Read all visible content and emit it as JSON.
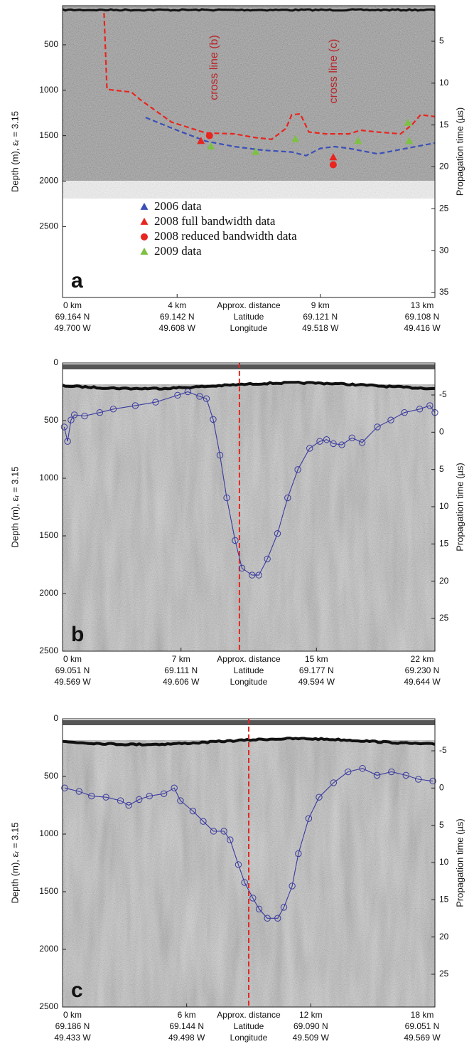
{
  "chart_data": [
    {
      "type": "line",
      "panel_label": "a",
      "y_label": "Depth (m), εᵣ = 3.15",
      "y2_label": "Propagation  time (µs)",
      "xlim": [
        0,
        13
      ],
      "xticks": [
        {
          "value": 0,
          "label": "0 km"
        },
        {
          "value": 4,
          "label": "4 km"
        },
        {
          "value": 9,
          "label": "9 km"
        },
        {
          "value": 13,
          "label": "13 km"
        }
      ],
      "latitudes": [
        "69.164 N",
        "69.142 N",
        "69.121 N",
        "69.108 N"
      ],
      "longitudes": [
        "49.700 W",
        "49.608 W",
        "49.518 W",
        "49.416 W"
      ],
      "row_labels": [
        "Approx. distance",
        "Latitude",
        "Longitude"
      ],
      "ylim": [
        3280,
        70
      ],
      "yticks": [
        500,
        1000,
        1500,
        2000,
        2500
      ],
      "y2lim": [
        35.6,
        0.75
      ],
      "y2ticks": [
        5,
        10,
        15,
        20,
        25,
        30,
        35
      ],
      "annotations": [
        "cross line (b)",
        "cross line (c)"
      ],
      "series": [
        {
          "name": "2006 data",
          "color": "#3b4fb8",
          "line": "dashed",
          "legend_marker": "triangle",
          "x": [
            2.9,
            4,
            5,
            6,
            7,
            8,
            8.5,
            9,
            9.5,
            10,
            11,
            12,
            13
          ],
          "values": [
            1300,
            1440,
            1560,
            1620,
            1660,
            1680,
            1720,
            1640,
            1620,
            1640,
            1700,
            1640,
            1580
          ]
        },
        {
          "name": "2008 full bandwidth data",
          "color": "#e8251f",
          "marker": "triangle",
          "x": [
            4.83,
            9.45
          ],
          "values": [
            1560,
            1740
          ]
        },
        {
          "name": "2008 reduced bandwidth data",
          "color": "#e8251f",
          "marker": "circle",
          "x": [
            5.13,
            9.45
          ],
          "values": [
            1500,
            1820
          ]
        },
        {
          "name": "2009 data",
          "color": "#7dc142",
          "marker": "triangle",
          "x": [
            5.18,
            6.74,
            8.13,
            10.32,
            12.06,
            12.1
          ],
          "values": [
            1620,
            1680,
            1540,
            1560,
            1360,
            1560
          ]
        },
        {
          "color": "#e8251f",
          "line": "dashed",
          "x": [
            1.45,
            1.55,
            1.8,
            2.4,
            2.7,
            3.8,
            5.0,
            6.0,
            6.7,
            7.3,
            7.8,
            8.0,
            8.3,
            8.6,
            9.2,
            10.0,
            10.4,
            11.0,
            11.8,
            12.2,
            12.5,
            13.0
          ],
          "values": [
            150,
            990,
            1000,
            1020,
            1100,
            1350,
            1470,
            1480,
            1520,
            1540,
            1420,
            1270,
            1260,
            1460,
            1480,
            1480,
            1440,
            1460,
            1480,
            1380,
            1270,
            1290
          ]
        }
      ]
    },
    {
      "type": "line",
      "panel_label": "b",
      "y_label": "Depth (m), εᵣ = 3.15",
      "y2_label": "Propagation  time (µs)",
      "xlim": [
        0,
        22
      ],
      "xticks": [
        {
          "value": 0,
          "label": "0 km"
        },
        {
          "value": 7,
          "label": "7 km"
        },
        {
          "value": 15,
          "label": "15 km"
        },
        {
          "value": 22,
          "label": "22 km"
        }
      ],
      "latitudes": [
        "69.051 N",
        "69.111 N",
        "69.177 N",
        "69.230 N"
      ],
      "longitudes": [
        "49.569 W",
        "49.606 W",
        "49.594 W",
        "49.644 W"
      ],
      "row_labels": [
        "Approx. distance",
        "Latitude",
        "Longitude"
      ],
      "ylim": [
        2500,
        0
      ],
      "yticks": [
        0,
        500,
        1000,
        1500,
        2000,
        2500
      ],
      "y2lim": [
        29.4,
        -9.3
      ],
      "y2ticks": [
        -5,
        0,
        5,
        10,
        15,
        20,
        25
      ],
      "vlines": [
        {
          "x": 10.45,
          "color": "#e8251f"
        }
      ],
      "series": [
        {
          "color": "#3a3aa0",
          "line": "solid",
          "marker": "circle-open",
          "x": [
            0.1,
            0.3,
            0.5,
            0.7,
            1.3,
            2.2,
            3.0,
            4.3,
            5.5,
            6.8,
            7.4,
            8.1,
            8.5,
            8.9,
            9.3,
            9.7,
            10.2,
            10.6,
            11.2,
            11.6,
            12.1,
            12.7,
            13.3,
            13.9,
            14.6,
            15.2,
            15.6,
            16.0,
            16.5,
            17.1,
            17.7,
            18.6,
            19.4,
            20.2,
            21.1,
            21.7,
            22.0
          ],
          "values": [
            555,
            680,
            495,
            450,
            460,
            430,
            400,
            370,
            340,
            280,
            250,
            290,
            310,
            490,
            800,
            1170,
            1540,
            1780,
            1840,
            1840,
            1700,
            1480,
            1170,
            925,
            740,
            680,
            665,
            700,
            710,
            650,
            690,
            555,
            495,
            430,
            400,
            370,
            430
          ]
        }
      ]
    },
    {
      "type": "line",
      "panel_label": "c",
      "y_label": "Depth (m), εᵣ = 3.15",
      "y2_label": "Propagation  time (µs)",
      "xlim": [
        0,
        18
      ],
      "xticks": [
        {
          "value": 0,
          "label": "0 km"
        },
        {
          "value": 6,
          "label": "6 km"
        },
        {
          "value": 12,
          "label": "12 km"
        },
        {
          "value": 18,
          "label": "18 km"
        }
      ],
      "latitudes": [
        "69.186 N",
        "69.144 N",
        "69.090 N",
        "69.051 N"
      ],
      "longitudes": [
        "49.433 W",
        "49.498 W",
        "49.509 W",
        "49.569 W"
      ],
      "row_labels": [
        "Approx. distance",
        "Latitude",
        "Longitude"
      ],
      "ylim": [
        2500,
        0
      ],
      "yticks": [
        0,
        500,
        1000,
        1500,
        2000,
        2500
      ],
      "y2lim": [
        29.4,
        -9.3
      ],
      "y2ticks": [
        -5,
        0,
        5,
        10,
        15,
        20,
        25
      ],
      "vlines": [
        {
          "x": 9.0,
          "color": "#e8251f"
        }
      ],
      "series": [
        {
          "color": "#3a3aa0",
          "line": "solid",
          "marker": "circle-open",
          "x": [
            0.1,
            0.8,
            1.4,
            2.1,
            2.8,
            3.2,
            3.7,
            4.2,
            4.9,
            5.4,
            5.7,
            6.3,
            6.8,
            7.3,
            7.8,
            8.1,
            8.5,
            8.8,
            9.2,
            9.5,
            9.9,
            10.4,
            10.7,
            11.1,
            11.4,
            11.9,
            12.4,
            13.1,
            13.8,
            14.5,
            15.2,
            15.9,
            16.6,
            17.2,
            17.9
          ],
          "values": [
            600,
            630,
            670,
            680,
            710,
            750,
            700,
            670,
            650,
            600,
            710,
            800,
            890,
            975,
            975,
            1050,
            1265,
            1420,
            1555,
            1650,
            1730,
            1730,
            1635,
            1450,
            1170,
            865,
            680,
            555,
            460,
            430,
            490,
            460,
            490,
            525,
            540
          ]
        }
      ]
    }
  ]
}
